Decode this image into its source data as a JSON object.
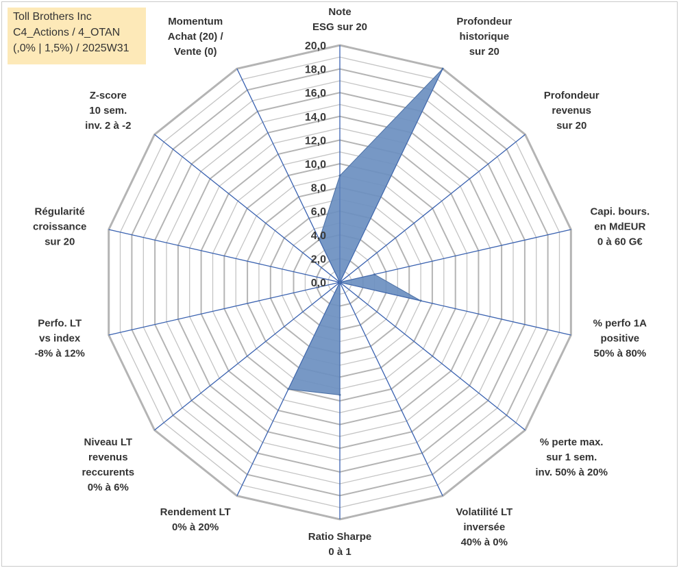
{
  "info_box": {
    "line1": "Toll Brothers Inc",
    "line2": "C4_Actions / 4_OTAN",
    "line3": "(,0% | 1,5%) / 2025W31"
  },
  "chart_data": {
    "type": "radar",
    "range": [
      0,
      20
    ],
    "tick_step": 1,
    "tick_labels": [
      "0,0",
      "2,0",
      "4,0",
      "6,0",
      "8,0",
      "10,0",
      "12,0",
      "14,0",
      "16,0",
      "18,0",
      "20,0"
    ],
    "colors": {
      "fill": "#6b8fc0",
      "stroke": "#4a6fa5",
      "spoke": "#3a62b0",
      "grid": "#c4c4c4",
      "grid_major": "#b4b4b4"
    },
    "categories": [
      [
        "Note",
        "ESG sur 20"
      ],
      [
        "Profondeur",
        "historique",
        "sur 20"
      ],
      [
        "Profondeur",
        "revenus",
        "sur 20"
      ],
      [
        "Capi. bours.",
        "en MdEUR",
        "0 à 60 G€"
      ],
      [
        "% perfo 1A",
        "positive",
        "50% à 80%"
      ],
      [
        "% perte max.",
        "sur 1 sem.",
        "inv. 50% à 20%"
      ],
      [
        "Volatilité LT",
        "inversée",
        "40% à 0%"
      ],
      [
        "Ratio Sharpe",
        "0 à 1"
      ],
      [
        "Rendement LT",
        "0% à 20%"
      ],
      [
        "Niveau LT",
        "revenus",
        "reccurents",
        "0% à 6%"
      ],
      [
        "Perfo. LT",
        "vs index",
        "-8% à 12%"
      ],
      [
        "Régularité",
        "croissance",
        "sur 20"
      ],
      [
        "Z-score",
        "10 sem.",
        "inv. 2 à -2"
      ],
      [
        "Momentum",
        "Achat (20) /",
        "Vente (0)"
      ]
    ],
    "values": [
      9,
      20,
      0,
      3,
      7,
      0,
      0,
      9.5,
      10,
      0,
      0,
      0,
      0,
      4
    ]
  }
}
